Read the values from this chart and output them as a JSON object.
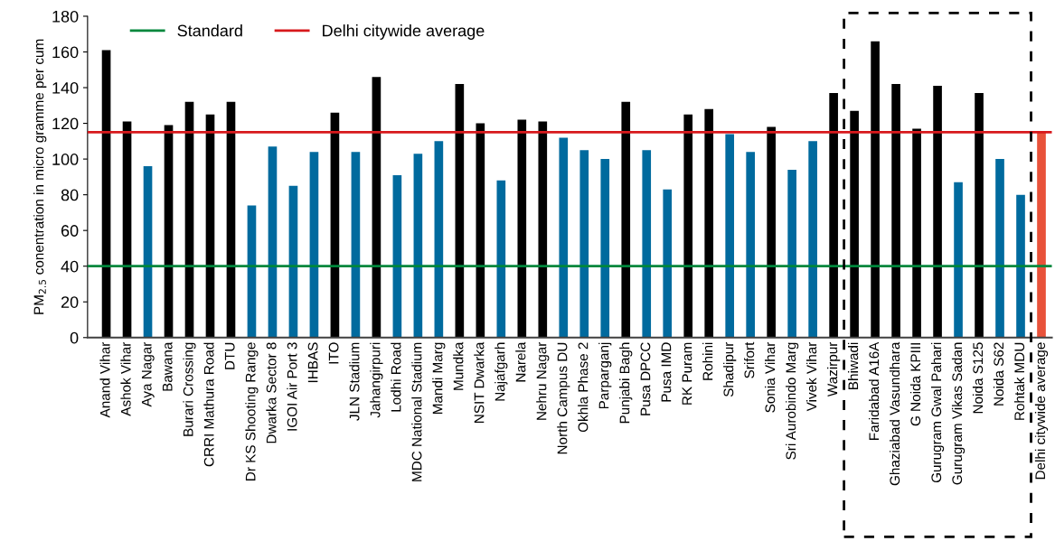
{
  "chart_data": {
    "type": "bar",
    "ylabel": "PM$_{2.5}$ conentration in micro gramme per cum",
    "categories": [
      "Anand Vihar",
      "Ashok Vihar",
      "Aya Nagar",
      "Bawana",
      "Burari Crossing",
      "CRRI Mathura Road",
      "DTU",
      "Dr KS Shooting Range",
      "Dwarka Sector 8",
      "IGOI Air Port 3",
      "IHBAS",
      "ITO",
      "JLN Stadium",
      "Jahangirpuri",
      "Lodhi Road",
      "MDC National Stadium",
      "Mandi Marg",
      "Mundka",
      "NSIT Dwarka",
      "Najafgarh",
      "Narela",
      "Nehru Nagar",
      "North Campus DU",
      "Okhla Phase 2",
      "Parparganj",
      "Punjabi Bagh",
      "Pusa DPCC",
      "Pusa IMD",
      "RK Puram",
      "Rohini",
      "Shadipur",
      "Srifort",
      "Sonia Vihar",
      "Sri Aurobindo Marg",
      "Vivek Vihar",
      "Wazirpur",
      "Bhiwadi",
      "Faridabad A16A",
      "Ghaziabad Vasundhara",
      "G Noida KPIII",
      "Gurugram Gwal Pahari",
      "Gurugram Vikas Sadan",
      "Noida S125",
      "Noida S62",
      "Rohtak MDU",
      "Delhi citywide average"
    ],
    "values": [
      161,
      121,
      96,
      119,
      132,
      125,
      132,
      74,
      107,
      85,
      104,
      126,
      104,
      146,
      91,
      103,
      110,
      142,
      120,
      88,
      122,
      121,
      112,
      105,
      100,
      132,
      105,
      83,
      125,
      128,
      114,
      104,
      118,
      94,
      110,
      137,
      127,
      166,
      142,
      117,
      141,
      87,
      137,
      100,
      80,
      115
    ],
    "colors": [
      "#000000",
      "#000000",
      "#006a9e",
      "#000000",
      "#000000",
      "#000000",
      "#000000",
      "#006a9e",
      "#006a9e",
      "#006a9e",
      "#006a9e",
      "#000000",
      "#006a9e",
      "#000000",
      "#006a9e",
      "#006a9e",
      "#006a9e",
      "#000000",
      "#000000",
      "#006a9e",
      "#000000",
      "#000000",
      "#006a9e",
      "#006a9e",
      "#006a9e",
      "#000000",
      "#006a9e",
      "#006a9e",
      "#000000",
      "#000000",
      "#006a9e",
      "#006a9e",
      "#000000",
      "#006a9e",
      "#006a9e",
      "#000000",
      "#000000",
      "#000000",
      "#000000",
      "#000000",
      "#000000",
      "#006a9e",
      "#000000",
      "#006a9e",
      "#006a9e",
      "#e8523a"
    ],
    "ylim": [
      0,
      180
    ],
    "yticks": [
      0,
      20,
      40,
      60,
      80,
      100,
      120,
      140,
      160,
      180
    ],
    "ref_lines": [
      {
        "axis": "y",
        "value": 40,
        "label": "Standard",
        "color": "#00873c"
      },
      {
        "axis": "y",
        "value": 115,
        "label": "Delhi citywide average",
        "color": "#d7191c"
      }
    ],
    "legend": "top left",
    "grid": false
  }
}
